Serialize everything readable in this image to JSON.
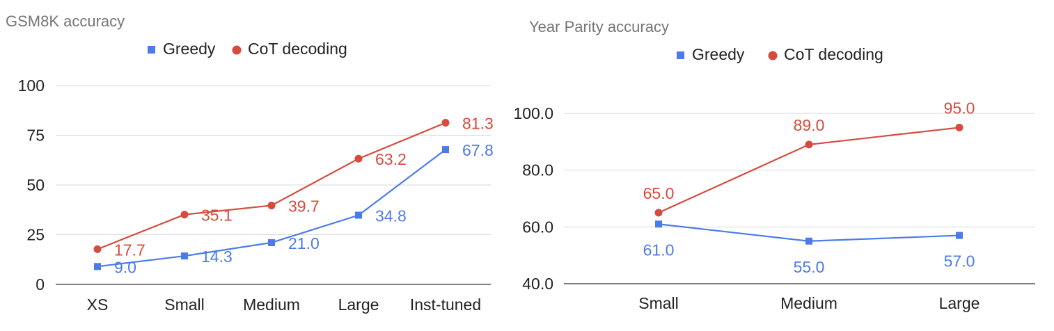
{
  "colors": {
    "greedy": "#4a7be8",
    "cot": "#d54b3d"
  },
  "chart_data": [
    {
      "type": "line",
      "title": "GSM8K accuracy",
      "categories": [
        "XS",
        "Small",
        "Medium",
        "Large",
        "Inst-tuned"
      ],
      "ylim": [
        0,
        100
      ],
      "yticks": [
        "0",
        "25",
        "50",
        "75",
        "100"
      ],
      "ytick_values": [
        0,
        25,
        50,
        75,
        100
      ],
      "grid": true,
      "legend": "top",
      "series": [
        {
          "name": "Greedy",
          "key": "greedy",
          "marker": "square",
          "values": [
            9.0,
            14.3,
            21.0,
            34.8,
            67.8
          ],
          "labels": [
            "9.0",
            "14.3",
            "21.0",
            "34.8",
            "67.8"
          ]
        },
        {
          "name": "CoT decoding",
          "key": "cot",
          "marker": "circle",
          "values": [
            17.7,
            35.1,
            39.7,
            63.2,
            81.3
          ],
          "labels": [
            "17.7",
            "35.1",
            "39.7",
            "63.2",
            "81.3"
          ]
        }
      ]
    },
    {
      "type": "line",
      "title": "Year Parity accuracy",
      "categories": [
        "Small",
        "Medium",
        "Large"
      ],
      "ylim": [
        40,
        100
      ],
      "yticks": [
        "40.0",
        "60.0",
        "80.0",
        "100.0"
      ],
      "ytick_values": [
        40,
        60,
        80,
        100
      ],
      "grid": true,
      "legend": "top",
      "series": [
        {
          "name": "Greedy",
          "key": "greedy",
          "marker": "square",
          "values": [
            61.0,
            55.0,
            57.0
          ],
          "labels": [
            "61.0",
            "55.0",
            "57.0"
          ]
        },
        {
          "name": "CoT decoding",
          "key": "cot",
          "marker": "circle",
          "values": [
            65.0,
            89.0,
            95.0
          ],
          "labels": [
            "65.0",
            "89.0",
            "95.0"
          ]
        }
      ]
    }
  ]
}
